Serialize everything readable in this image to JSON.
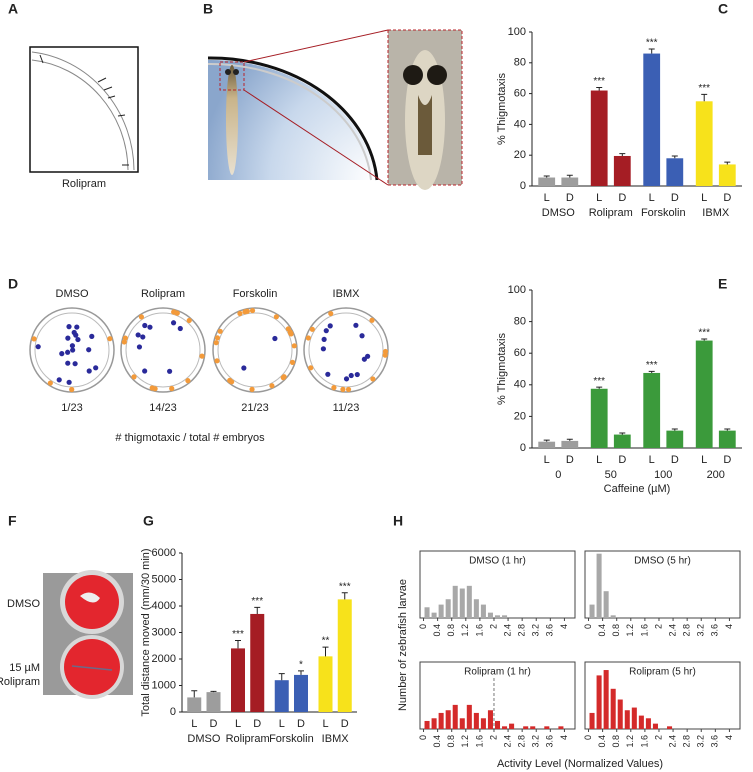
{
  "panels": {
    "A": {
      "letter": "A",
      "caption": "Rolipram"
    },
    "B": {
      "letter": "B"
    },
    "C": {
      "letter": "C"
    },
    "D": {
      "letter": "D",
      "wells": [
        {
          "label": "DMSO",
          "count": "1/23"
        },
        {
          "label": "Rolipram",
          "count": "14/23"
        },
        {
          "label": "Forskolin",
          "count": "21/23"
        },
        {
          "label": "IBMX",
          "count": "11/23"
        }
      ],
      "caption": "# thigmotaxic / total # embryos"
    },
    "E": {
      "letter": "E"
    },
    "F": {
      "letter": "F",
      "labels": [
        "DMSO",
        "15 µM",
        "Rolipram"
      ]
    },
    "G": {
      "letter": "G"
    },
    "H": {
      "letter": "H",
      "ylabel": "Number of zebrafish larvae",
      "xlabel": "Activity Level (Normalized Values)"
    }
  },
  "chart_data": [
    {
      "type": "bar",
      "ylabel": "% Thigmotaxis",
      "ylim": [
        0,
        100
      ],
      "yticks": [
        0,
        20,
        40,
        60,
        80,
        100
      ],
      "categories": [
        "L",
        "D",
        "L",
        "D",
        "L",
        "D",
        "L",
        "D"
      ],
      "groups": [
        "DMSO",
        "Rolipram",
        "Forskolin",
        "IBMX"
      ],
      "values": [
        5.5,
        5.5,
        62,
        19.5,
        86,
        18,
        55,
        14
      ],
      "errors": [
        1,
        1.5,
        2,
        1.5,
        3,
        1.5,
        4.5,
        1.5
      ],
      "annotations": [
        null,
        null,
        "***",
        null,
        "***",
        null,
        "***",
        null
      ],
      "colors": [
        "#9d9d9d",
        "#9d9d9d",
        "#a51d24",
        "#a51d24",
        "#3b5fb4",
        "#3b5fb4",
        "#f7e21b",
        "#f7e21b"
      ]
    },
    {
      "type": "bar",
      "ylabel": "% Thigmotaxis",
      "xlabel": "Caffeine (µM)",
      "ylim": [
        0,
        100
      ],
      "yticks": [
        0,
        20,
        40,
        60,
        80,
        100
      ],
      "categories": [
        "L",
        "D",
        "L",
        "D",
        "L",
        "D",
        "L",
        "D"
      ],
      "groups": [
        "0",
        "50",
        "100",
        "200"
      ],
      "values": [
        4,
        4.5,
        37.5,
        8.5,
        47.5,
        11,
        68,
        11
      ],
      "errors": [
        1,
        1,
        1,
        1,
        1,
        1,
        1,
        1
      ],
      "annotations": [
        null,
        null,
        "***",
        null,
        "***",
        null,
        "***",
        null
      ],
      "colors": [
        "#9d9d9d",
        "#9d9d9d",
        "#3b9a3b",
        "#3b9a3b",
        "#3b9a3b",
        "#3b9a3b",
        "#3b9a3b",
        "#3b9a3b"
      ]
    },
    {
      "type": "bar",
      "ylabel": "Total distance moved (mm/30 min)",
      "ylim": [
        0,
        6000
      ],
      "yticks": [
        0,
        1000,
        2000,
        3000,
        4000,
        5000,
        6000
      ],
      "categories": [
        "L",
        "D",
        "L",
        "D",
        "L",
        "D",
        "L",
        "D"
      ],
      "groups": [
        "DMSO",
        "Rolipram",
        "Forskolin",
        "IBMX"
      ],
      "values": [
        550,
        750,
        2400,
        3700,
        1200,
        1400,
        2100,
        4250
      ],
      "errors": [
        250,
        30,
        300,
        250,
        250,
        150,
        350,
        250
      ],
      "annotations": [
        null,
        null,
        "***",
        "***",
        null,
        "*",
        "**",
        "***"
      ],
      "colors": [
        "#9d9d9d",
        "#9d9d9d",
        "#a51d24",
        "#a51d24",
        "#3b5fb4",
        "#3b5fb4",
        "#f7e21b",
        "#f7e21b"
      ]
    },
    {
      "type": "histogram",
      "title": "DMSO (1 hr)",
      "color": "#a8a8a8",
      "xlim": [
        -0.1,
        4.3
      ],
      "ylim": [
        0,
        25
      ],
      "xticks": [
        0,
        0.4,
        0.8,
        1.2,
        1.6,
        2,
        2.4,
        2.8,
        3.2,
        3.6,
        4
      ],
      "bins": [
        0,
        0.2,
        0.4,
        0.6,
        0.8,
        1,
        1.2,
        1.4,
        1.6,
        1.8,
        2,
        2.2,
        2.4
      ],
      "counts": [
        4,
        2,
        5,
        7,
        12,
        11,
        12,
        7,
        5,
        2,
        1,
        1
      ]
    },
    {
      "type": "histogram",
      "title": "DMSO (5 hr)",
      "color": "#a8a8a8",
      "xlim": [
        -0.1,
        4.3
      ],
      "ylim": [
        0,
        25
      ],
      "xticks": [
        0,
        0.4,
        0.8,
        1.2,
        1.6,
        2,
        2.4,
        2.8,
        3.2,
        3.6,
        4
      ],
      "bins": [
        0,
        0.2,
        0.4,
        0.6,
        0.8
      ],
      "counts": [
        5,
        24,
        10,
        1
      ]
    },
    {
      "type": "histogram",
      "title": "Rolipram (1 hr)",
      "color": "#d42a2a",
      "xlim": [
        -0.1,
        4.3
      ],
      "ylim": [
        0,
        25
      ],
      "threshold": 2,
      "xticks": [
        0,
        0.4,
        0.8,
        1.2,
        1.6,
        2,
        2.4,
        2.8,
        3.2,
        3.6,
        4
      ],
      "bins": [
        0,
        0.2,
        0.4,
        0.6,
        0.8,
        1,
        1.2,
        1.4,
        1.6,
        1.8,
        2,
        2.2,
        2.4,
        2.6,
        2.8,
        3,
        3.2,
        3.4,
        3.6,
        3.8,
        4
      ],
      "counts": [
        3,
        4,
        6,
        7,
        9,
        4,
        9,
        6,
        4,
        7,
        3,
        1,
        2,
        0,
        1,
        1,
        0,
        1,
        0,
        1
      ]
    },
    {
      "type": "histogram",
      "title": "Rolipram (5 hr)",
      "color": "#d42a2a",
      "xlim": [
        -0.1,
        4.3
      ],
      "ylim": [
        0,
        25
      ],
      "xticks": [
        0,
        0.4,
        0.8,
        1.2,
        1.6,
        2,
        2.4,
        2.8,
        3.2,
        3.6,
        4
      ],
      "bins": [
        0,
        0.2,
        0.4,
        0.6,
        0.8,
        1,
        1.2,
        1.4,
        1.6,
        1.8,
        2,
        2.2,
        2.4
      ],
      "counts": [
        6,
        20,
        22,
        15,
        11,
        7,
        8,
        5,
        4,
        2,
        0,
        1
      ]
    }
  ]
}
